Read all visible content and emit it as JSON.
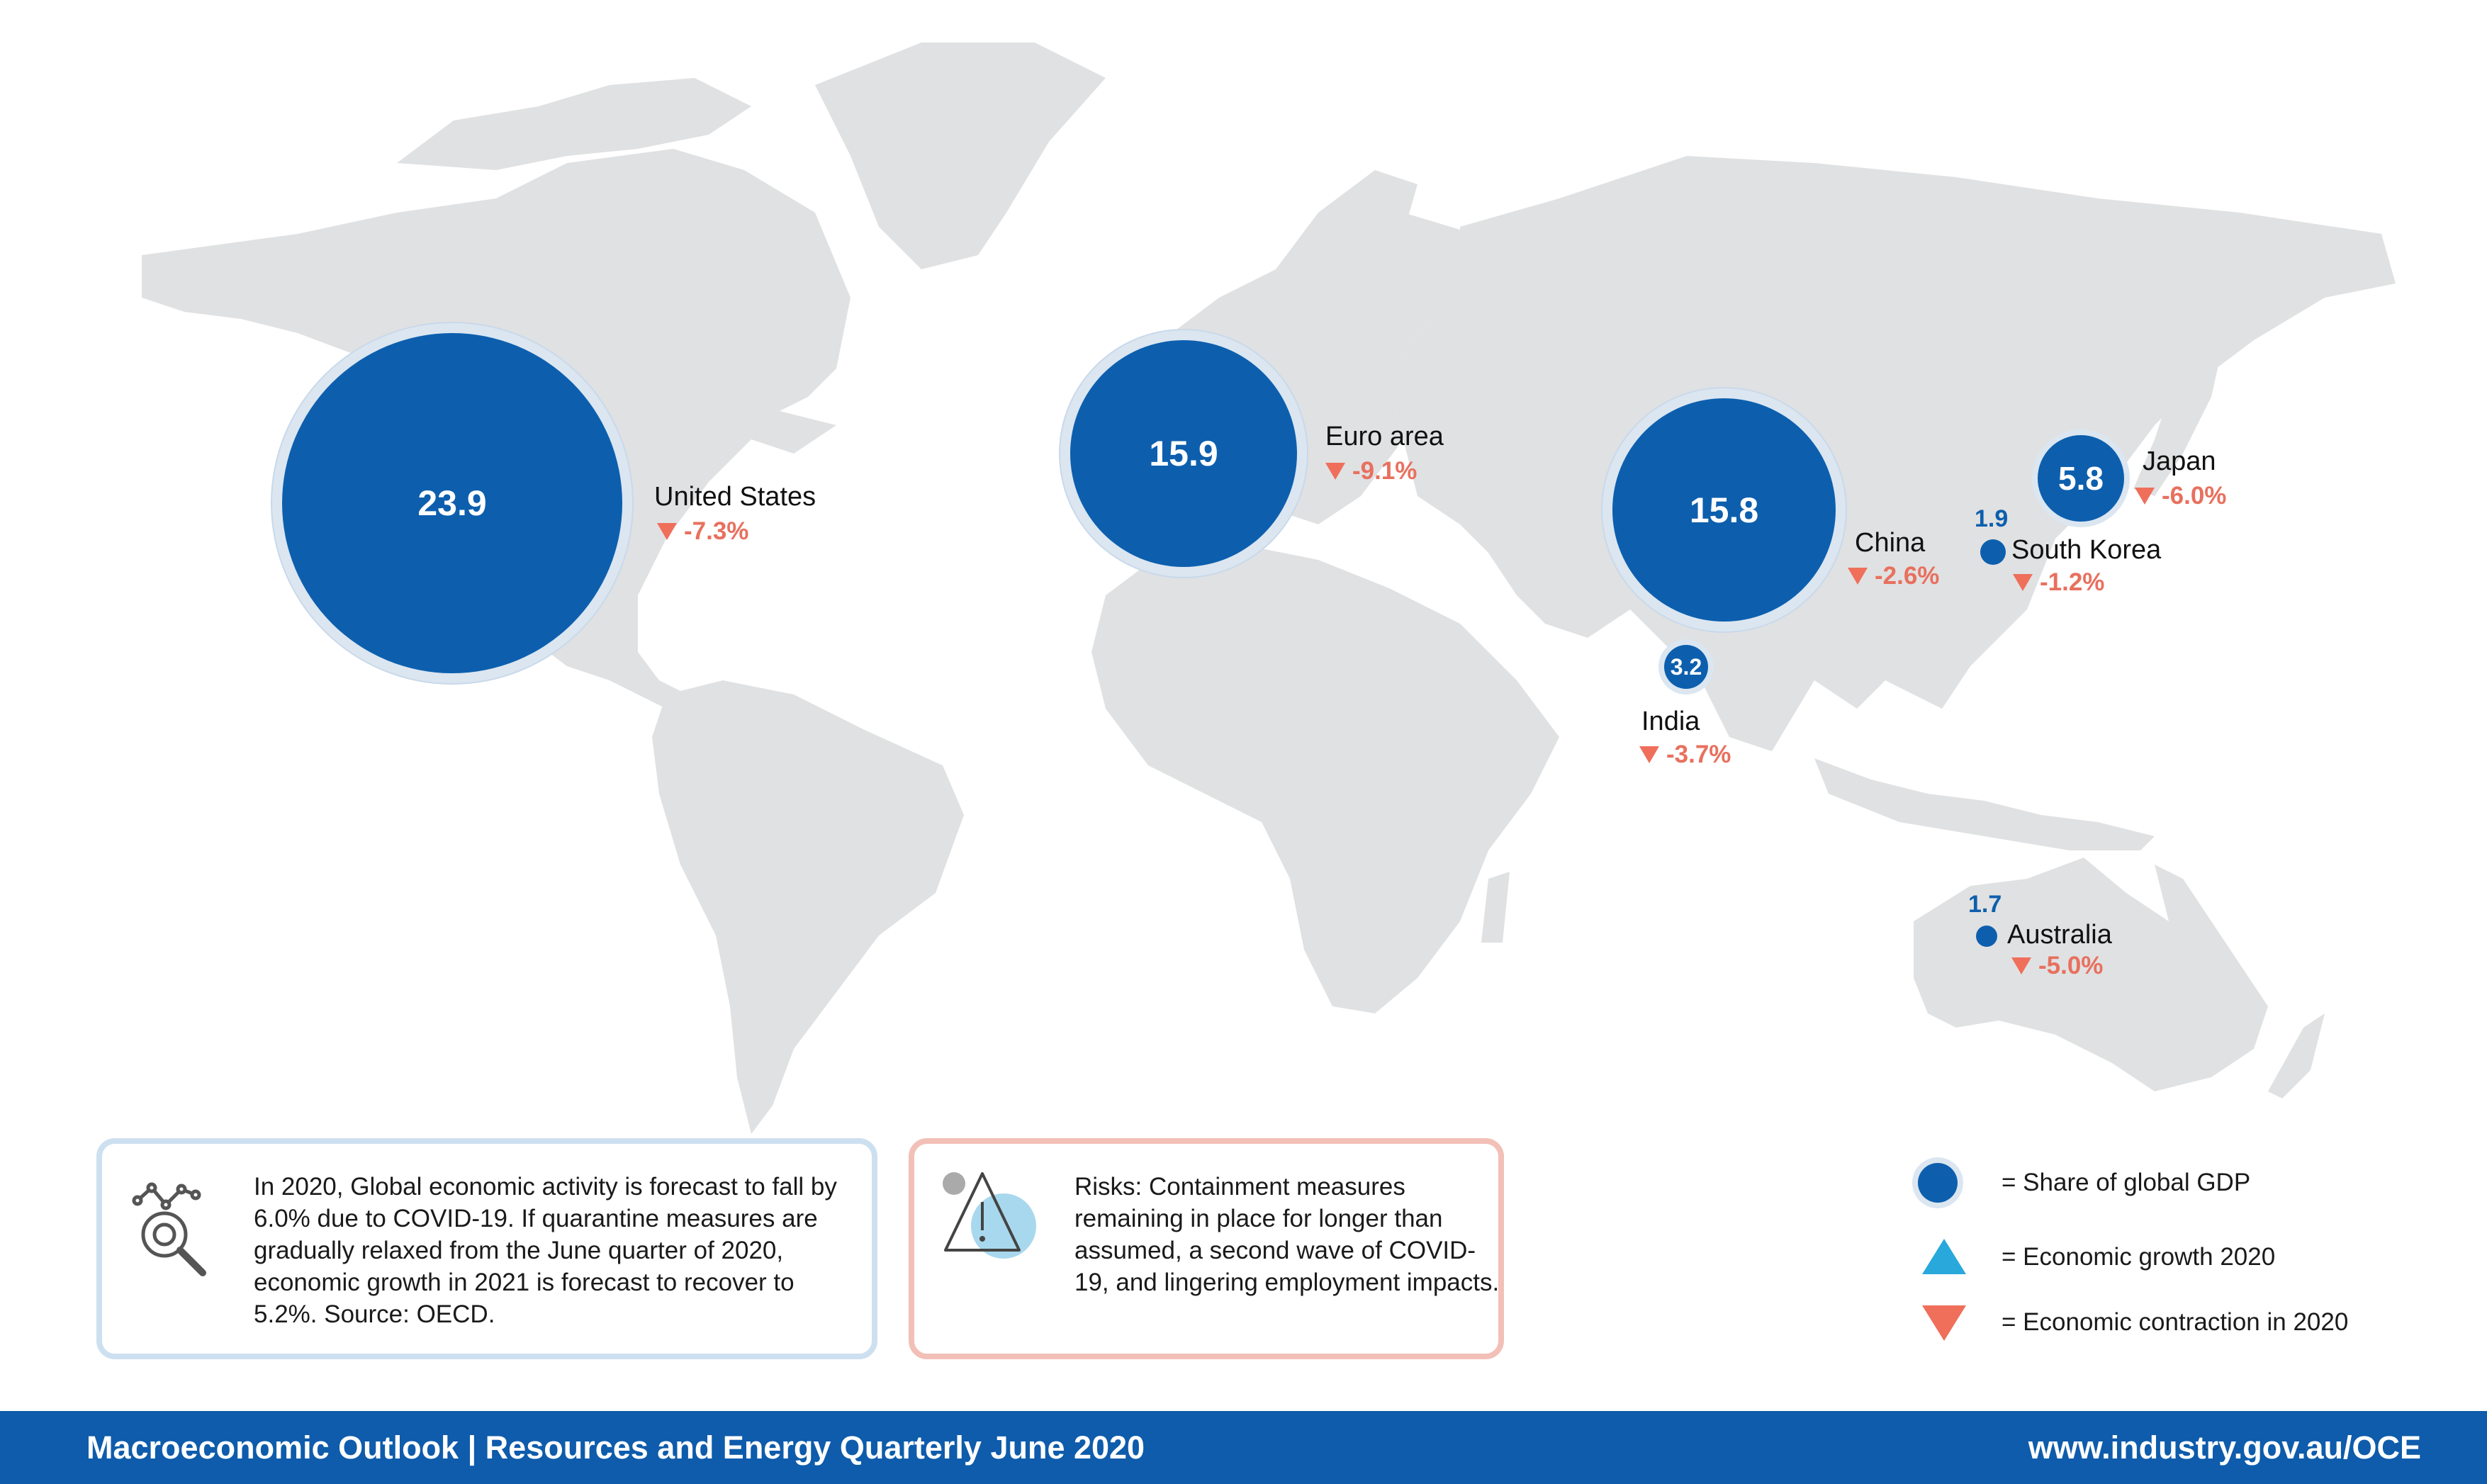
{
  "regions": [
    {
      "id": "united-states",
      "name": "United States",
      "gdp_share": "23.9",
      "growth": "-7.3%"
    },
    {
      "id": "euro-area",
      "name": "Euro area",
      "gdp_share": "15.9",
      "growth": "-9.1%"
    },
    {
      "id": "china",
      "name": "China",
      "gdp_share": "15.8",
      "growth": "-2.6%"
    },
    {
      "id": "japan",
      "name": "Japan",
      "gdp_share": "5.8",
      "growth": "-6.0%"
    },
    {
      "id": "india",
      "name": "India",
      "gdp_share": "3.2",
      "growth": "-3.7%"
    },
    {
      "id": "south-korea",
      "name": "South Korea",
      "gdp_share": "1.9",
      "growth": "-1.2%"
    },
    {
      "id": "australia",
      "name": "Australia",
      "gdp_share": "1.7",
      "growth": "-5.0%"
    }
  ],
  "info": {
    "oecd_text": "In 2020, Global economic activity is forecast to fall by 6.0% due to COVID-19. If quarantine measures are gradually relaxed from the June quarter of 2020, economic growth in 2021 is forecast to recover to 5.2%. Source: OECD.",
    "risks_text": "Risks: Containment measures remaining in place for longer than assumed, a second wave of COVID-19, and lingering employment impacts."
  },
  "legend": {
    "share": "= Share of global GDP",
    "growth": "= Economic growth 2020",
    "contraction": "= Economic contraction in 2020"
  },
  "footer": {
    "title": "Macroeconomic Outlook | Resources and Energy Quarterly June 2020",
    "url": "www.industry.gov.au/OCE"
  },
  "colors": {
    "bubble": "#0d5fae",
    "contraction": "#ef6f5b",
    "growth": "#29a8dc",
    "land": "#e0e1e2",
    "footer": "#0e5cab"
  }
}
